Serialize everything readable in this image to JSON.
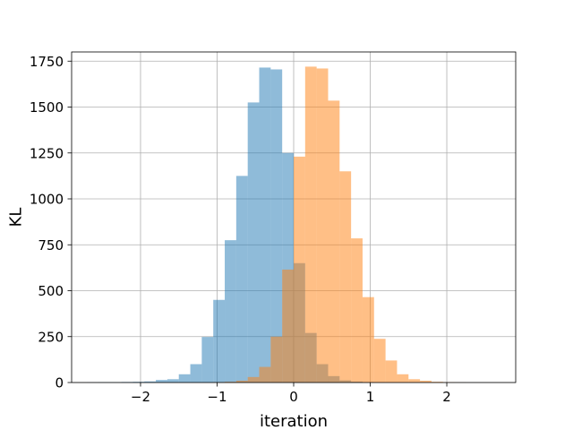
{
  "chart_data": {
    "type": "bar",
    "subtype": "overlaid histogram",
    "title": "",
    "xlabel": "iteration",
    "ylabel": "KL",
    "xlim": [
      -2.9,
      2.9
    ],
    "ylim": [
      0,
      1800
    ],
    "x_ticks": [
      -2,
      -1,
      0,
      1,
      2
    ],
    "x_tick_labels": [
      "−2",
      "−1",
      "0",
      "1",
      "2"
    ],
    "y_ticks": [
      0,
      250,
      500,
      750,
      1000,
      1250,
      1500,
      1750
    ],
    "y_tick_labels": [
      "0",
      "250",
      "500",
      "750",
      "1000",
      "1250",
      "1500",
      "1750"
    ],
    "grid": true,
    "legend": "none",
    "series": [
      {
        "color": "#1f77b4",
        "alpha": 0.5,
        "bins": [
          {
            "x0": -2.7,
            "x1": -2.55,
            "value": 1
          },
          {
            "x0": -2.55,
            "x1": -2.4,
            "value": 2
          },
          {
            "x0": -2.4,
            "x1": -2.25,
            "value": 2
          },
          {
            "x0": -2.25,
            "x1": -2.1,
            "value": 3
          },
          {
            "x0": -2.1,
            "x1": -1.95,
            "value": 4
          },
          {
            "x0": -1.95,
            "x1": -1.8,
            "value": 6
          },
          {
            "x0": -1.8,
            "x1": -1.65,
            "value": 14
          },
          {
            "x0": -1.65,
            "x1": -1.5,
            "value": 18
          },
          {
            "x0": -1.5,
            "x1": -1.35,
            "value": 45
          },
          {
            "x0": -1.35,
            "x1": -1.2,
            "value": 100
          },
          {
            "x0": -1.2,
            "x1": -1.05,
            "value": 248
          },
          {
            "x0": -1.05,
            "x1": -0.9,
            "value": 450
          },
          {
            "x0": -0.9,
            "x1": -0.75,
            "value": 775
          },
          {
            "x0": -0.75,
            "x1": -0.6,
            "value": 1125
          },
          {
            "x0": -0.6,
            "x1": -0.45,
            "value": 1525
          },
          {
            "x0": -0.45,
            "x1": -0.3,
            "value": 1715
          },
          {
            "x0": -0.3,
            "x1": -0.15,
            "value": 1705
          },
          {
            "x0": -0.15,
            "x1": 0.0,
            "value": 1250
          },
          {
            "x0": 0.0,
            "x1": 0.15,
            "value": 650
          },
          {
            "x0": 0.15,
            "x1": 0.3,
            "value": 270
          },
          {
            "x0": 0.3,
            "x1": 0.45,
            "value": 100
          },
          {
            "x0": 0.45,
            "x1": 0.6,
            "value": 35
          },
          {
            "x0": 0.6,
            "x1": 0.75,
            "value": 12
          },
          {
            "x0": 0.75,
            "x1": 0.9,
            "value": 5
          },
          {
            "x0": 0.9,
            "x1": 1.05,
            "value": 2
          }
        ]
      },
      {
        "color": "#ff7f0e",
        "alpha": 0.5,
        "bins": [
          {
            "x0": -1.05,
            "x1": -0.9,
            "value": 2
          },
          {
            "x0": -0.9,
            "x1": -0.75,
            "value": 4
          },
          {
            "x0": -0.75,
            "x1": -0.6,
            "value": 10
          },
          {
            "x0": -0.6,
            "x1": -0.45,
            "value": 30
          },
          {
            "x0": -0.45,
            "x1": -0.3,
            "value": 85
          },
          {
            "x0": -0.3,
            "x1": -0.15,
            "value": 250
          },
          {
            "x0": -0.15,
            "x1": 0.0,
            "value": 615
          },
          {
            "x0": 0.0,
            "x1": 0.15,
            "value": 1230
          },
          {
            "x0": 0.15,
            "x1": 0.3,
            "value": 1720
          },
          {
            "x0": 0.3,
            "x1": 0.45,
            "value": 1710
          },
          {
            "x0": 0.45,
            "x1": 0.6,
            "value": 1535
          },
          {
            "x0": 0.6,
            "x1": 0.75,
            "value": 1150
          },
          {
            "x0": 0.75,
            "x1": 0.9,
            "value": 785
          },
          {
            "x0": 0.9,
            "x1": 1.05,
            "value": 465
          },
          {
            "x0": 1.05,
            "x1": 1.2,
            "value": 238
          },
          {
            "x0": 1.2,
            "x1": 1.35,
            "value": 120
          },
          {
            "x0": 1.35,
            "x1": 1.5,
            "value": 45
          },
          {
            "x0": 1.5,
            "x1": 1.65,
            "value": 18
          },
          {
            "x0": 1.65,
            "x1": 1.8,
            "value": 10
          },
          {
            "x0": 1.8,
            "x1": 1.95,
            "value": 4
          },
          {
            "x0": 1.95,
            "x1": 2.1,
            "value": 2
          },
          {
            "x0": 2.1,
            "x1": 2.25,
            "value": 1
          }
        ]
      }
    ]
  }
}
